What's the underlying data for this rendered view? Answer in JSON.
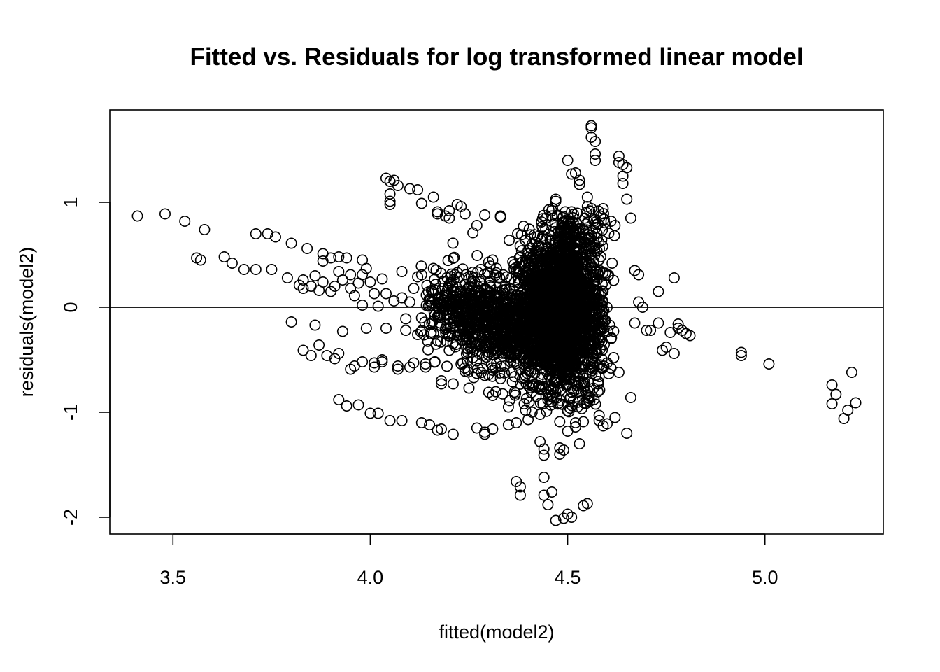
{
  "chart_data": {
    "type": "scatter",
    "title": "Fitted vs. Residuals for log transformed linear model",
    "xlabel": "fitted(model2)",
    "ylabel": "residuals(model2)",
    "xlim": [
      3.34,
      5.3
    ],
    "ylim": [
      -2.16,
      1.88
    ],
    "x_ticks": [
      3.5,
      4.0,
      4.5,
      5.0
    ],
    "x_tick_labels": [
      "3.5",
      "4.0",
      "4.5",
      "5.0"
    ],
    "y_ticks": [
      -2,
      -1,
      0,
      1
    ],
    "y_tick_labels": [
      "-2",
      "-1",
      "0",
      "1"
    ],
    "reference_line": {
      "orientation": "horizontal",
      "y": 0
    },
    "grid": false,
    "legend": "none",
    "marker": "open-circle",
    "color": "#000000",
    "points": [
      [
        3.41,
        0.87
      ],
      [
        3.48,
        0.89
      ],
      [
        3.53,
        0.82
      ],
      [
        3.56,
        0.47
      ],
      [
        3.57,
        0.45
      ],
      [
        3.58,
        0.74
      ],
      [
        3.63,
        0.48
      ],
      [
        3.65,
        0.42
      ],
      [
        3.68,
        0.36
      ],
      [
        3.71,
        0.7
      ],
      [
        3.71,
        0.36
      ],
      [
        3.74,
        0.7
      ],
      [
        3.75,
        0.36
      ],
      [
        3.76,
        0.67
      ],
      [
        3.79,
        0.28
      ],
      [
        3.8,
        0.61
      ],
      [
        3.8,
        -0.14
      ],
      [
        3.82,
        0.21
      ],
      [
        3.83,
        0.18
      ],
      [
        3.83,
        0.26
      ],
      [
        3.83,
        -0.41
      ],
      [
        3.84,
        0.56
      ],
      [
        3.85,
        -0.46
      ],
      [
        3.85,
        0.2
      ],
      [
        3.86,
        0.3
      ],
      [
        3.86,
        -0.17
      ],
      [
        3.87,
        0.16
      ],
      [
        3.87,
        -0.36
      ],
      [
        3.88,
        0.44
      ],
      [
        3.88,
        0.51
      ],
      [
        3.88,
        0.24
      ],
      [
        3.89,
        -0.46
      ],
      [
        3.9,
        0.47
      ],
      [
        3.9,
        0.15
      ],
      [
        3.91,
        -0.49
      ],
      [
        3.91,
        0.2
      ],
      [
        3.92,
        0.48
      ],
      [
        3.92,
        -0.88
      ],
      [
        3.92,
        0.34
      ],
      [
        3.92,
        -0.44
      ],
      [
        3.93,
        0.26
      ],
      [
        3.93,
        -0.23
      ],
      [
        3.94,
        0.47
      ],
      [
        3.94,
        -0.94
      ],
      [
        3.95,
        0.31
      ],
      [
        3.95,
        0.18
      ],
      [
        3.95,
        -0.59
      ],
      [
        3.96,
        0.11
      ],
      [
        3.96,
        -0.56
      ],
      [
        3.97,
        0.23
      ],
      [
        3.97,
        -0.93
      ],
      [
        3.98,
        0.45
      ],
      [
        3.98,
        -0.52
      ],
      [
        3.98,
        0.31
      ],
      [
        3.98,
        0.02
      ],
      [
        3.99,
        -0.2
      ],
      [
        3.99,
        0.37
      ],
      [
        4.0,
        -1.01
      ],
      [
        4.0,
        0.24
      ],
      [
        4.01,
        0.13
      ],
      [
        4.01,
        -0.57
      ],
      [
        4.01,
        -0.53
      ],
      [
        4.02,
        0.01
      ],
      [
        4.02,
        -1.01
      ],
      [
        4.03,
        0.27
      ],
      [
        4.03,
        -0.5
      ],
      [
        4.03,
        -0.52
      ],
      [
        4.04,
        0.13
      ],
      [
        4.04,
        -0.2
      ],
      [
        4.04,
        1.23
      ],
      [
        4.05,
        1.2
      ],
      [
        4.05,
        1.01
      ],
      [
        4.05,
        1.08
      ],
      [
        4.05,
        0.98
      ],
      [
        4.05,
        -1.08
      ],
      [
        4.06,
        1.21
      ],
      [
        4.06,
        0.06
      ],
      [
        4.07,
        -0.56
      ],
      [
        4.07,
        -0.59
      ],
      [
        4.07,
        1.16
      ],
      [
        4.08,
        0.09
      ],
      [
        4.08,
        -1.08
      ],
      [
        4.08,
        0.34
      ],
      [
        4.09,
        -0.11
      ],
      [
        4.09,
        -0.22
      ],
      [
        4.1,
        1.13
      ],
      [
        4.1,
        0.05
      ],
      [
        4.1,
        -0.57
      ],
      [
        4.11,
        0.18
      ],
      [
        4.11,
        -0.53
      ],
      [
        4.12,
        1.12
      ],
      [
        4.12,
        0.29
      ],
      [
        4.12,
        -0.26
      ],
      [
        4.13,
        -1.1
      ],
      [
        4.13,
        0.99
      ],
      [
        4.13,
        0.31
      ],
      [
        4.14,
        -0.57
      ],
      [
        4.14,
        -0.54
      ],
      [
        4.15,
        -1.12
      ],
      [
        4.15,
        0.06
      ],
      [
        4.15,
        -0.16
      ],
      [
        4.16,
        1.05
      ],
      [
        4.16,
        0.37
      ],
      [
        4.16,
        -0.25
      ],
      [
        4.17,
        0.91
      ],
      [
        4.17,
        0.89
      ],
      [
        4.17,
        -1.17
      ],
      [
        4.18,
        -0.73
      ],
      [
        4.18,
        -0.7
      ],
      [
        4.18,
        -1.16
      ],
      [
        4.19,
        0.87
      ],
      [
        4.19,
        0.01
      ],
      [
        4.19,
        -0.21
      ],
      [
        4.2,
        0.85
      ],
      [
        4.2,
        -0.41
      ],
      [
        4.2,
        0.92
      ],
      [
        4.21,
        -0.73
      ],
      [
        4.21,
        0.03
      ],
      [
        4.21,
        -1.21
      ],
      [
        4.22,
        0.33
      ],
      [
        4.22,
        -0.27
      ],
      [
        4.22,
        0.98
      ],
      [
        4.23,
        0.96
      ],
      [
        4.23,
        -0.54
      ],
      [
        4.24,
        0.07
      ],
      [
        4.24,
        -0.61
      ],
      [
        4.24,
        0.89
      ],
      [
        4.25,
        0.27
      ],
      [
        4.25,
        -0.77
      ],
      [
        4.26,
        0.06
      ],
      [
        4.26,
        -0.48
      ],
      [
        4.26,
        0.71
      ],
      [
        4.27,
        -1.15
      ],
      [
        4.27,
        0.78
      ],
      [
        4.27,
        -0.63
      ],
      [
        4.28,
        -0.2
      ],
      [
        4.28,
        0.36
      ],
      [
        4.29,
        0.88
      ],
      [
        4.29,
        -1.19
      ],
      [
        4.29,
        -0.65
      ],
      [
        4.29,
        -1.21
      ],
      [
        4.3,
        0.43
      ],
      [
        4.3,
        -0.81
      ],
      [
        4.31,
        -0.84
      ],
      [
        4.31,
        0.45
      ],
      [
        4.31,
        -1.16
      ],
      [
        4.32,
        0.14
      ],
      [
        4.32,
        -0.43
      ],
      [
        4.33,
        0.87
      ],
      [
        4.33,
        0.86
      ],
      [
        4.33,
        -0.68
      ],
      [
        4.34,
        -0.56
      ],
      [
        4.34,
        -0.21
      ],
      [
        4.35,
        -1.12
      ],
      [
        4.35,
        -0.95
      ],
      [
        4.36,
        0.12
      ],
      [
        4.36,
        -0.71
      ],
      [
        4.37,
        -1.1
      ],
      [
        4.37,
        -1.66
      ],
      [
        4.38,
        -1.71
      ],
      [
        4.38,
        -1.79
      ],
      [
        4.38,
        0.48
      ],
      [
        4.39,
        -0.67
      ],
      [
        4.39,
        -0.92
      ],
      [
        4.4,
        -1.07
      ],
      [
        4.4,
        0.54
      ],
      [
        4.41,
        0.6
      ],
      [
        4.41,
        -0.3
      ],
      [
        4.41,
        -1.0
      ],
      [
        4.42,
        -0.85
      ],
      [
        4.42,
        0.62
      ],
      [
        4.43,
        -1.28
      ],
      [
        4.43,
        -0.39
      ],
      [
        4.43,
        -1.02
      ],
      [
        4.44,
        -1.35
      ],
      [
        4.44,
        -1.41
      ],
      [
        4.44,
        -1.62
      ],
      [
        4.44,
        -1.79
      ],
      [
        4.45,
        -0.88
      ],
      [
        4.45,
        -0.45
      ],
      [
        4.45,
        -1.88
      ],
      [
        4.46,
        -1.76
      ],
      [
        4.46,
        0.87
      ],
      [
        4.46,
        0.92
      ],
      [
        4.47,
        -2.03
      ],
      [
        4.47,
        1.03
      ],
      [
        4.47,
        1.01
      ],
      [
        4.47,
        -0.81
      ],
      [
        4.48,
        -1.34
      ],
      [
        4.48,
        -1.4
      ],
      [
        4.48,
        -1.09
      ],
      [
        4.49,
        -2.01
      ],
      [
        4.49,
        -1.36
      ],
      [
        4.49,
        0.8
      ],
      [
        4.5,
        -1.18
      ],
      [
        4.5,
        -1.97
      ],
      [
        4.5,
        1.4
      ],
      [
        4.51,
        1.27
      ],
      [
        4.51,
        -2.0
      ],
      [
        4.51,
        0.91
      ],
      [
        4.52,
        -1.14
      ],
      [
        4.52,
        1.28
      ],
      [
        4.52,
        -1.1
      ],
      [
        4.53,
        1.21
      ],
      [
        4.53,
        -1.3
      ],
      [
        4.53,
        1.17
      ],
      [
        4.54,
        -1.09
      ],
      [
        4.54,
        -1.89
      ],
      [
        4.55,
        1.05
      ],
      [
        4.55,
        -1.87
      ],
      [
        4.55,
        0.96
      ],
      [
        4.56,
        1.71
      ],
      [
        4.56,
        1.73
      ],
      [
        4.56,
        1.62
      ],
      [
        4.57,
        1.58
      ],
      [
        4.57,
        1.46
      ],
      [
        4.57,
        1.4
      ],
      [
        4.58,
        -1.03
      ],
      [
        4.58,
        -1.08
      ],
      [
        4.59,
        -1.13
      ],
      [
        4.59,
        0.94
      ],
      [
        4.6,
        -1.11
      ],
      [
        4.6,
        -0.53
      ],
      [
        4.61,
        0.82
      ],
      [
        4.61,
        -0.58
      ],
      [
        4.62,
        0.78
      ],
      [
        4.62,
        -1.05
      ],
      [
        4.63,
        -0.62
      ],
      [
        4.63,
        1.44
      ],
      [
        4.63,
        1.38
      ],
      [
        4.64,
        1.36
      ],
      [
        4.64,
        1.25
      ],
      [
        4.64,
        1.18
      ],
      [
        4.65,
        1.33
      ],
      [
        4.65,
        1.03
      ],
      [
        4.65,
        -1.2
      ],
      [
        4.66,
        0.85
      ],
      [
        4.66,
        -0.86
      ],
      [
        4.67,
        0.35
      ],
      [
        4.67,
        -0.15
      ],
      [
        4.68,
        0.31
      ],
      [
        4.68,
        0.05
      ],
      [
        4.69,
        0.0
      ],
      [
        4.7,
        -0.22
      ],
      [
        4.71,
        -0.22
      ],
      [
        4.73,
        -0.15
      ],
      [
        4.73,
        0.15
      ],
      [
        4.74,
        -0.41
      ],
      [
        4.75,
        -0.38
      ],
      [
        4.76,
        -0.24
      ],
      [
        4.77,
        0.28
      ],
      [
        4.77,
        -0.44
      ],
      [
        4.78,
        -0.16
      ],
      [
        4.78,
        -0.2
      ],
      [
        4.79,
        -0.22
      ],
      [
        4.8,
        -0.25
      ],
      [
        4.81,
        -0.27
      ],
      [
        4.94,
        -0.43
      ],
      [
        4.94,
        -0.46
      ],
      [
        5.01,
        -0.54
      ],
      [
        5.17,
        -0.74
      ],
      [
        5.17,
        -0.92
      ],
      [
        5.18,
        -0.83
      ],
      [
        5.2,
        -1.06
      ],
      [
        5.21,
        -0.98
      ],
      [
        5.22,
        -0.62
      ],
      [
        5.23,
        -0.91
      ]
    ]
  }
}
